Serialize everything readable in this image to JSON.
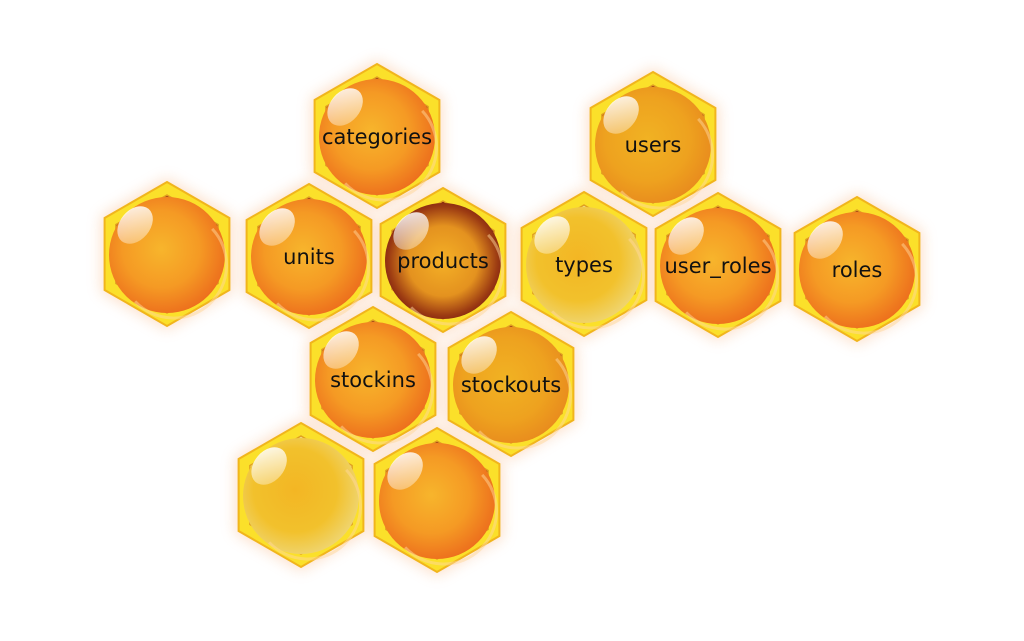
{
  "diagram": {
    "cells": [
      {
        "id": "categories",
        "label": "categories",
        "style": "orange"
      },
      {
        "id": "users",
        "label": "users",
        "style": "amber"
      },
      {
        "id": "blank-left",
        "label": "",
        "style": "orange"
      },
      {
        "id": "units",
        "label": "units",
        "style": "orange"
      },
      {
        "id": "products",
        "label": "products",
        "style": "dark"
      },
      {
        "id": "types",
        "label": "types",
        "style": "pale"
      },
      {
        "id": "user_roles",
        "label": "user_roles",
        "style": "orange"
      },
      {
        "id": "roles",
        "label": "roles",
        "style": "orange"
      },
      {
        "id": "stockins",
        "label": "stockins",
        "style": "orange"
      },
      {
        "id": "stockouts",
        "label": "stockouts",
        "style": "amber"
      },
      {
        "id": "blank-bottom-left",
        "label": "",
        "style": "pale"
      },
      {
        "id": "blank-bottom",
        "label": "",
        "style": "orange"
      }
    ]
  }
}
